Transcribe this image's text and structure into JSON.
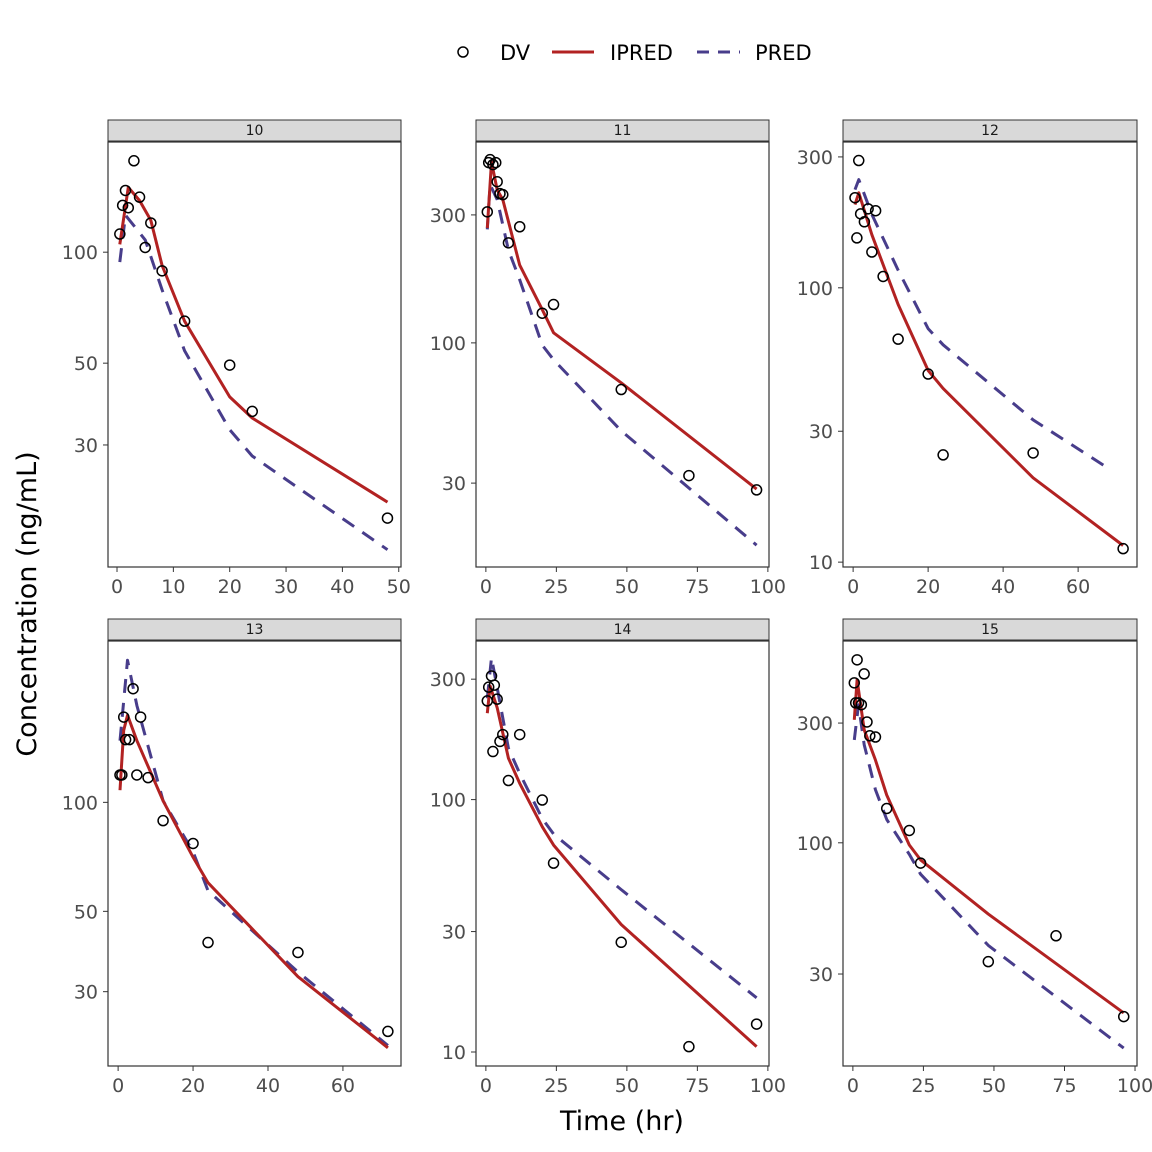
{
  "chart_data": {
    "type": "line",
    "scale_y": "log10",
    "xlabel": "Time (hr)",
    "ylabel": "Concentration (ng/mL)",
    "legend": {
      "placement": "top",
      "entries": [
        {
          "key": "DV",
          "label": "DV",
          "style": "open-circle"
        },
        {
          "key": "IPRED",
          "label": "IPRED",
          "style": "solid-line",
          "color": "#b22222"
        },
        {
          "key": "PRED",
          "label": "PRED",
          "style": "dashed-line",
          "color": "#483d8b"
        }
      ]
    },
    "panels": [
      {
        "id": "10",
        "xlim": [
          -1.6,
          50.4
        ],
        "ylim": [
          14.0,
          199
        ],
        "xticks": [
          0,
          10,
          20,
          30,
          40,
          50
        ],
        "yticks": [
          30,
          50,
          100
        ],
        "DV": {
          "x": [
            0.5,
            1,
            1.5,
            2,
            3,
            4,
            5,
            6,
            8,
            12,
            20,
            24,
            48
          ],
          "y": [
            112,
            134,
            147,
            132,
            177,
            141,
            103,
            120,
            89,
            65,
            49.4,
            37,
            19
          ]
        },
        "IPRED": {
          "x": [
            0.5,
            2,
            4,
            6,
            8,
            12,
            20,
            24,
            48
          ],
          "y": [
            105,
            150,
            138,
            122,
            92,
            65,
            40.5,
            35.5,
            21
          ]
        },
        "PRED": {
          "x": [
            0.5,
            1.5,
            5,
            8,
            12,
            20,
            24,
            48
          ],
          "y": [
            94,
            126,
            108,
            79,
            54,
            33,
            28,
            15.6
          ]
        }
      },
      {
        "id": "11",
        "xlim": [
          -3.5,
          100.4
        ],
        "ylim": [
          14.6,
          561
        ],
        "xticks": [
          0,
          25,
          50,
          75,
          100
        ],
        "yticks": [
          30,
          100,
          300
        ],
        "DV": {
          "x": [
            0.5,
            1,
            1.5,
            2.5,
            3.5,
            4,
            5,
            6,
            8,
            12,
            20,
            24,
            48,
            72,
            96
          ],
          "y": [
            308,
            470,
            482,
            462,
            470,
            399,
            360,
            357,
            236,
            271,
            129,
            139,
            67,
            32,
            28.3
          ]
        },
        "IPRED": {
          "x": [
            0.5,
            2,
            4,
            6,
            12,
            20,
            24,
            48,
            96
          ],
          "y": [
            268,
            473,
            372,
            342,
            195,
            133,
            109,
            71,
            28.5
          ]
        },
        "PRED": {
          "x": [
            0.5,
            1.5,
            4,
            8,
            12,
            20,
            24,
            48,
            96
          ],
          "y": [
            265,
            389,
            342,
            222,
            172,
            98,
            86.5,
            47,
            17.6
          ]
        }
      },
      {
        "id": "12",
        "xlim": [
          -2.7,
          75.7
        ],
        "ylim": [
          9.6,
          340
        ],
        "xticks": [
          0,
          20,
          40,
          60
        ],
        "yticks": [
          10,
          30,
          100,
          300
        ],
        "DV": {
          "x": [
            0.5,
            1,
            1.5,
            2,
            3,
            4,
            5,
            6,
            8,
            12,
            20,
            24,
            48,
            72
          ],
          "y": [
            213,
            152,
            291,
            186,
            174,
            194,
            135,
            191,
            110,
            65,
            48.5,
            24.6,
            25,
            11.2
          ]
        },
        "IPRED": {
          "x": [
            0.5,
            1.5,
            5,
            12,
            20,
            24,
            48,
            72
          ],
          "y": [
            201,
            222,
            156,
            87,
            50,
            43,
            20.3,
            11.5
          ]
        },
        "PRED": {
          "x": [
            0.5,
            1.5,
            5,
            12,
            20,
            24,
            48,
            68
          ],
          "y": [
            228,
            248,
            185,
            116,
            71,
            62,
            33,
            22
          ]
        }
      },
      {
        "id": "13",
        "xlim": [
          -2.7,
          75.5
        ],
        "ylim": [
          18.7,
          279
        ],
        "xticks": [
          0,
          20,
          40,
          60
        ],
        "yticks": [
          30,
          50,
          100
        ],
        "DV": {
          "x": [
            0.5,
            1,
            1.5,
            2,
            3,
            4,
            5,
            6,
            8,
            12,
            20,
            24,
            48,
            72
          ],
          "y": [
            119,
            119,
            172,
            149,
            149,
            206,
            119,
            172,
            117,
            89,
            77,
            41,
            38.5,
            23.3
          ]
        },
        "IPRED": {
          "x": [
            0.5,
            1.5,
            2.5,
            5,
            12,
            20,
            24,
            48,
            72
          ],
          "y": [
            108,
            158,
            174,
            148,
            101,
            70.5,
            60,
            33,
            21
          ]
        },
        "PRED": {
          "x": [
            0.5,
            2.5,
            5,
            12,
            20,
            24,
            48,
            72
          ],
          "y": [
            148,
            247,
            185,
            101,
            73,
            57,
            34,
            21.3
          ]
        }
      },
      {
        "id": "14",
        "xlim": [
          -3.5,
          100.4
        ],
        "ylim": [
          8.8,
          425
        ],
        "xticks": [
          0,
          25,
          50,
          75,
          100
        ],
        "yticks": [
          10,
          30,
          100,
          300
        ],
        "DV": {
          "x": [
            0.5,
            1,
            2,
            2.5,
            3,
            4,
            5,
            6,
            8,
            12,
            20,
            24,
            48,
            72,
            96
          ],
          "y": [
            246,
            279,
            309,
            155,
            284,
            250,
            170,
            181,
            119,
            181,
            99.6,
            56,
            27.2,
            10.5,
            12.9
          ]
        },
        "IPRED": {
          "x": [
            0.5,
            1.5,
            4,
            8,
            12,
            20,
            24,
            48,
            96
          ],
          "y": [
            220,
            282,
            231,
            146,
            116,
            78,
            66,
            32,
            10.5
          ]
        },
        "PRED": {
          "x": [
            0.5,
            2,
            4,
            8,
            12,
            20,
            24,
            48,
            96
          ],
          "y": [
            252,
            365,
            277,
            160,
            127,
            84,
            73,
            44,
            16.4
          ]
        }
      },
      {
        "id": "15",
        "xlim": [
          -3.5,
          100.7
        ],
        "ylim": [
          12.9,
          637
        ],
        "xticks": [
          0,
          25,
          50,
          75,
          100
        ],
        "yticks": [
          30,
          100,
          300
        ],
        "DV": {
          "x": [
            0.5,
            1,
            1.5,
            2,
            3,
            4,
            5,
            6,
            8,
            12,
            20,
            24,
            48,
            72,
            96
          ],
          "y": [
            434,
            361,
            536,
            361,
            355,
            471,
            303,
            267,
            264,
            137,
            112,
            83,
            33.6,
            42.6,
            20.3
          ]
        },
        "IPRED": {
          "x": [
            0.5,
            1.5,
            4,
            8,
            12,
            20,
            24,
            48,
            96
          ],
          "y": [
            309,
            446,
            282,
            214,
            155,
            98,
            85.5,
            52,
            21
          ]
        },
        "PRED": {
          "x": [
            0.5,
            2,
            4,
            8,
            12,
            20,
            24,
            48,
            96
          ],
          "y": [
            257,
            355,
            246,
            163,
            124,
            90,
            75,
            39,
            15.2
          ]
        }
      }
    ]
  }
}
